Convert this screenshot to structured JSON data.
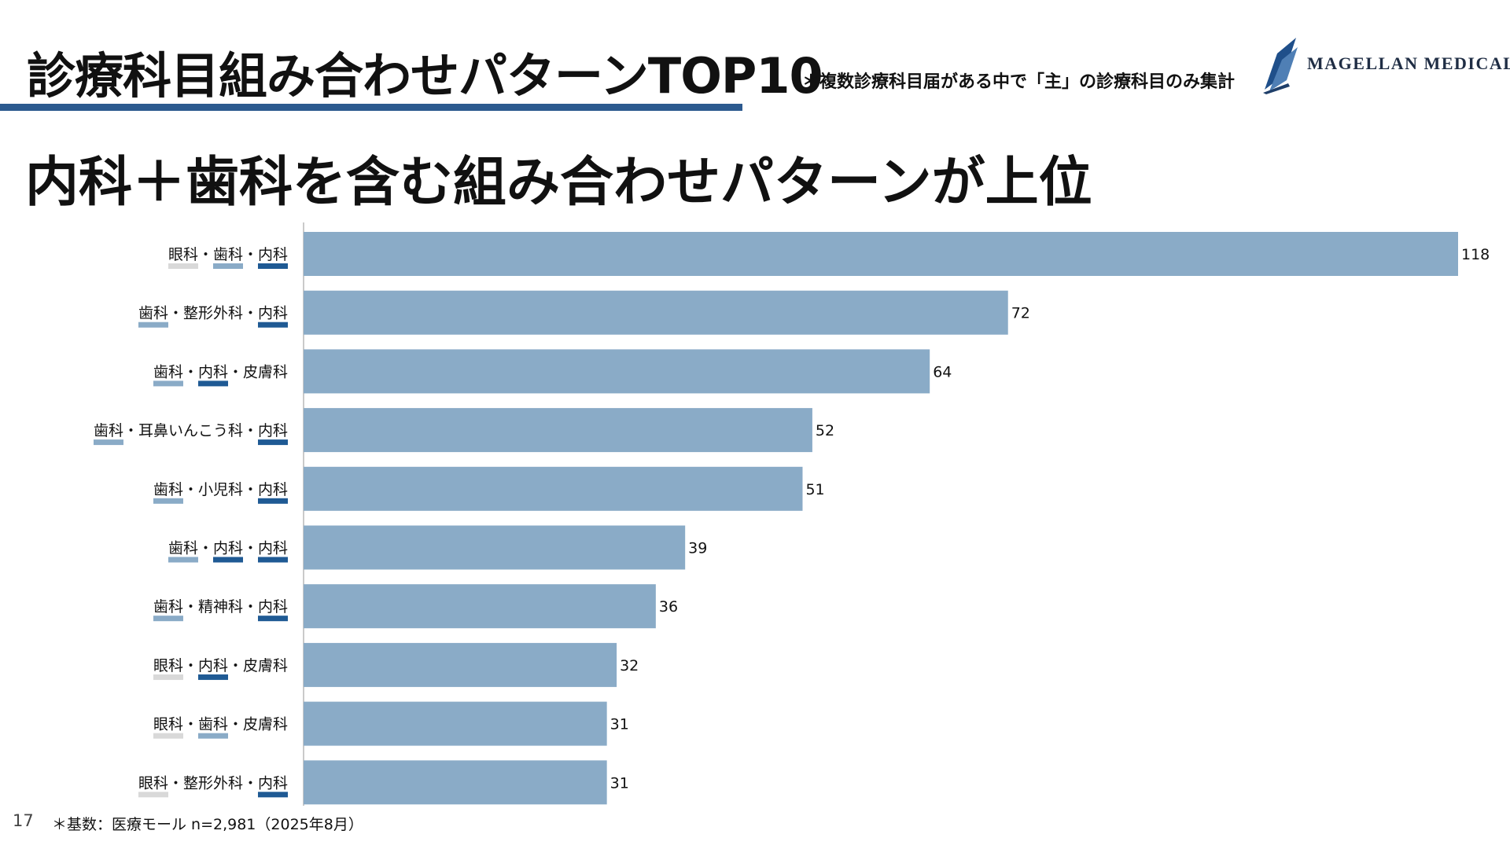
{
  "header": {
    "title": "診療科目組み合わせパターンTOP10",
    "note": "＊複数診療科目届がある中で「主」の診療科目のみ集計",
    "subtitle": "内科＋歯科を含む組み合わせパターンが上位"
  },
  "logo": {
    "text": "MAGELLAN MEDICAL",
    "icon": "book-sail-logo-icon"
  },
  "footer": {
    "page_number": "17",
    "footnote": "＊基数：医療モール n=2,981（2025年8月）"
  },
  "colors": {
    "bar": "#8aabc7",
    "title_rule": "#2c5a8f",
    "tag_internal": "#1f5a94",
    "tag_dental": "#8aabc7",
    "tag_ophthalmology": "#d9d9d9"
  },
  "chart_data": {
    "type": "bar",
    "orientation": "horizontal",
    "categories": [
      "眼科・歯科・内科",
      "歯科・整形外科・内科",
      "歯科・内科・皮膚科",
      "歯科・耳鼻いんこう科・内科",
      "歯科・小児科・内科",
      "歯科・内科・内科",
      "歯科・精神科・内科",
      "眼科・内科・皮膚科",
      "眼科・歯科・皮膚科",
      "眼科・整形外科・内科"
    ],
    "values": [
      118,
      72,
      64,
      52,
      51,
      39,
      36,
      32,
      31,
      31
    ],
    "xlim": [
      0,
      118
    ],
    "grid": false,
    "legend": "none",
    "data_labels": true
  }
}
